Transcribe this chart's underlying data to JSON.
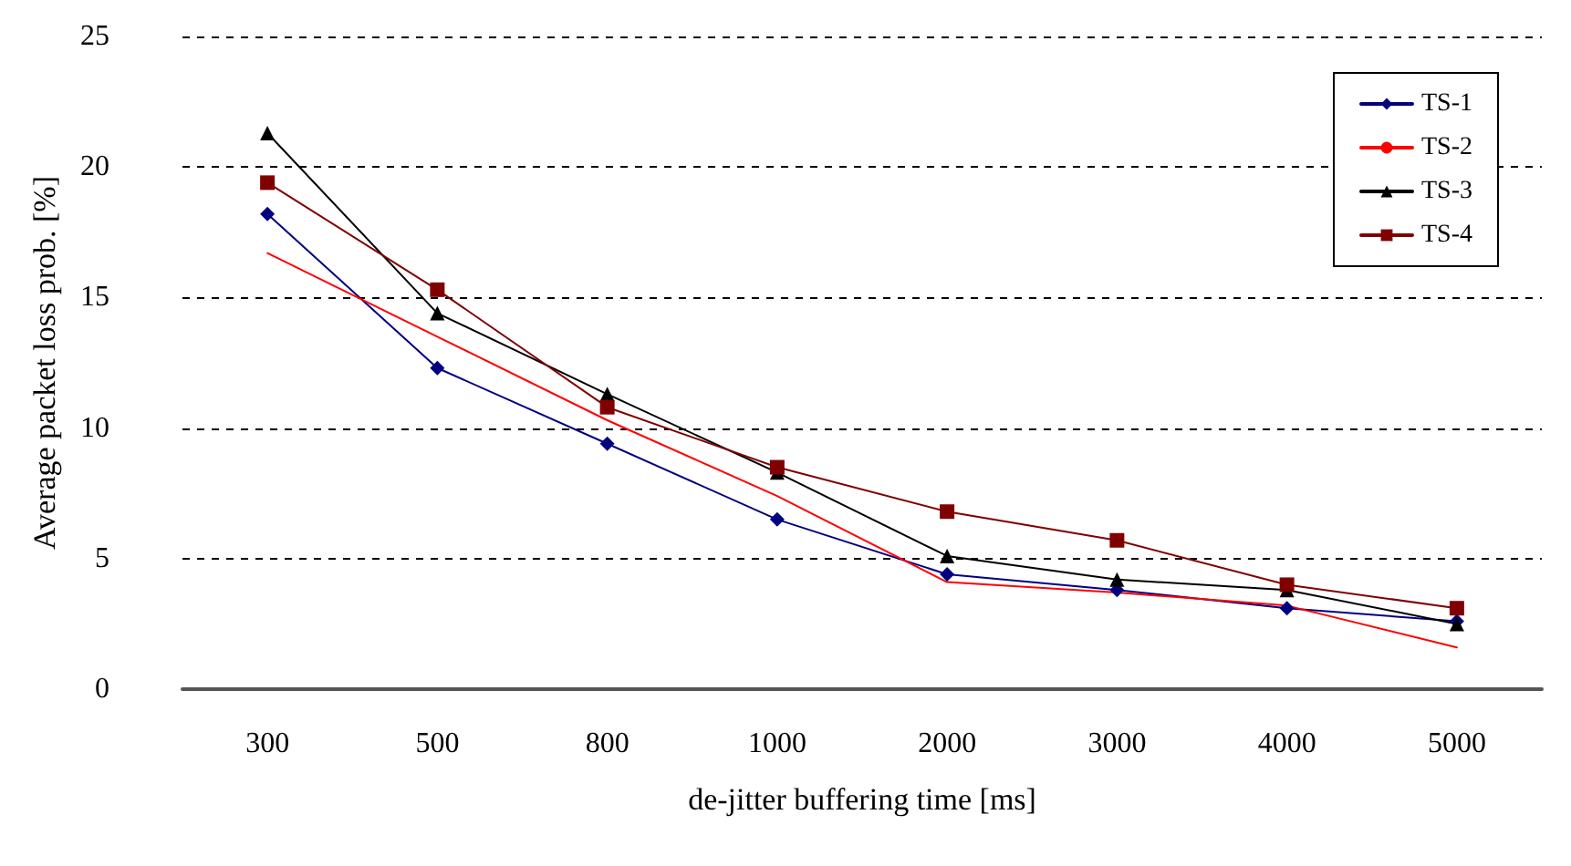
{
  "chart_data": {
    "type": "line",
    "xlabel": "de-jitter buffering time [ms]",
    "ylabel": "Average packet loss prob. [%]",
    "categories": [
      "300",
      "500",
      "800",
      "1000",
      "2000",
      "3000",
      "4000",
      "5000"
    ],
    "ylim": [
      0,
      25
    ],
    "yticks": [
      0,
      5,
      10,
      15,
      20,
      25
    ],
    "grid": "y",
    "legend": "top right",
    "line_style": "solid",
    "series": [
      {
        "name": "TS-1",
        "color": "#000080",
        "marker": "diamond",
        "values": [
          18.2,
          12.3,
          9.4,
          6.5,
          4.4,
          3.8,
          3.1,
          2.6
        ]
      },
      {
        "name": "TS-2",
        "color": "#ff0000",
        "marker": "none",
        "values": [
          16.7,
          13.5,
          10.3,
          7.4,
          4.1,
          3.7,
          3.2,
          1.6
        ]
      },
      {
        "name": "TS-3",
        "color": "#000000",
        "marker": "triangle",
        "values": [
          21.3,
          14.4,
          11.3,
          8.3,
          5.1,
          4.2,
          3.8,
          2.5
        ]
      },
      {
        "name": "TS-4",
        "color": "#800000",
        "marker": "square",
        "values": [
          19.4,
          15.3,
          10.8,
          8.5,
          6.8,
          5.7,
          4.0,
          3.1
        ]
      }
    ]
  }
}
